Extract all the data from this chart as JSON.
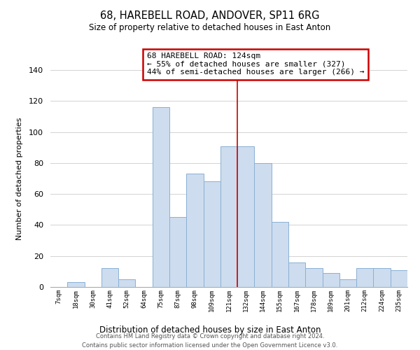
{
  "title": "68, HAREBELL ROAD, ANDOVER, SP11 6RG",
  "subtitle": "Size of property relative to detached houses in East Anton",
  "xlabel": "Distribution of detached houses by size in East Anton",
  "ylabel": "Number of detached properties",
  "bar_labels": [
    "7sqm",
    "18sqm",
    "30sqm",
    "41sqm",
    "52sqm",
    "64sqm",
    "75sqm",
    "87sqm",
    "98sqm",
    "109sqm",
    "121sqm",
    "132sqm",
    "144sqm",
    "155sqm",
    "167sqm",
    "178sqm",
    "189sqm",
    "201sqm",
    "212sqm",
    "224sqm",
    "235sqm"
  ],
  "bar_values": [
    0,
    3,
    0,
    12,
    5,
    0,
    116,
    45,
    73,
    68,
    91,
    91,
    80,
    42,
    16,
    12,
    9,
    5,
    12,
    12,
    11
  ],
  "bar_color": "#cddcee",
  "bar_edge_color": "#8ab0d4",
  "property_line_x": 10.5,
  "annotation_title": "68 HAREBELL ROAD: 124sqm",
  "annotation_line1": "← 55% of detached houses are smaller (327)",
  "annotation_line2": "44% of semi-detached houses are larger (266) →",
  "annotation_box_color": "#ffffff",
  "annotation_box_edge_color": "#cc0000",
  "footer_line1": "Contains HM Land Registry data © Crown copyright and database right 2024.",
  "footer_line2": "Contains public sector information licensed under the Open Government Licence v3.0.",
  "ylim": [
    0,
    140
  ],
  "background_color": "#ffffff",
  "grid_color": "#cccccc",
  "yticks": [
    0,
    20,
    40,
    60,
    80,
    100,
    120,
    140
  ]
}
